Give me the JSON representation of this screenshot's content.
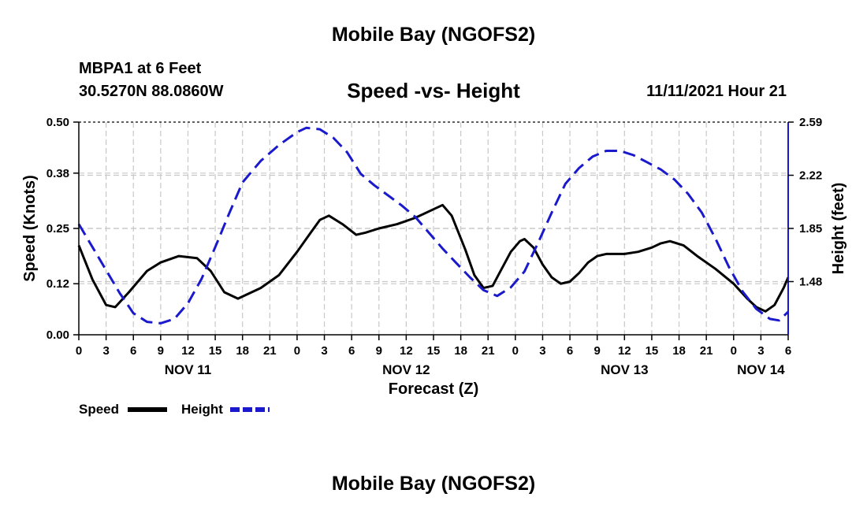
{
  "page": {
    "title": "Mobile Bay (NGOFS2)",
    "station": "MBPA1 at 6 Feet",
    "coords": "30.5270N  88.0860W",
    "subtitle": "Speed -vs- Height",
    "datetime": "11/11/2021 Hour 21",
    "bottom_title": "Mobile Bay (NGOFS2)"
  },
  "colors": {
    "speed": "#000000",
    "height": "#1a1acc",
    "grid": "#c8c8c8"
  },
  "chart_data": {
    "type": "line",
    "title": "Speed -vs- Height",
    "xlabel": "Forecast (Z)",
    "ylabel": "Speed (Knots)",
    "y2label": "Height (feet)",
    "x_range": [
      0,
      78
    ],
    "x_ticks": [
      0,
      3,
      6,
      9,
      12,
      15,
      18,
      21,
      24,
      27,
      30,
      33,
      36,
      39,
      42,
      45,
      48,
      51,
      54,
      57,
      60,
      63,
      66,
      69,
      72,
      75,
      78
    ],
    "x_tick_labels": [
      "0",
      "3",
      "6",
      "9",
      "12",
      "15",
      "18",
      "21",
      "0",
      "3",
      "6",
      "9",
      "12",
      "15",
      "18",
      "21",
      "0",
      "3",
      "6",
      "9",
      "12",
      "15",
      "18",
      "21",
      "0",
      "3",
      "6"
    ],
    "day_labels": [
      {
        "x": 12,
        "label": "NOV 11"
      },
      {
        "x": 36,
        "label": "NOV 12"
      },
      {
        "x": 60,
        "label": "NOV 13"
      },
      {
        "x": 75,
        "label": "NOV 14"
      }
    ],
    "ylim": [
      0,
      0.5
    ],
    "y_ticks": [
      0.0,
      0.12,
      0.25,
      0.38,
      0.5
    ],
    "y_tick_labels": [
      "0.00",
      "0.12",
      "0.25",
      "0.38",
      "0.50"
    ],
    "y2lim": [
      1.11,
      2.59
    ],
    "y2_ticks": [
      1.48,
      1.85,
      2.22,
      2.59
    ],
    "y2_tick_labels": [
      "1.48",
      "1.85",
      "2.22",
      "2.59"
    ],
    "series": [
      {
        "name": "Speed",
        "axis": "left",
        "style": "solid",
        "points": [
          [
            0,
            0.21
          ],
          [
            1.5,
            0.13
          ],
          [
            3,
            0.07
          ],
          [
            4,
            0.065
          ],
          [
            5.5,
            0.1
          ],
          [
            7.5,
            0.15
          ],
          [
            9,
            0.17
          ],
          [
            11,
            0.185
          ],
          [
            13,
            0.18
          ],
          [
            14.5,
            0.15
          ],
          [
            16,
            0.1
          ],
          [
            17.5,
            0.085
          ],
          [
            20,
            0.11
          ],
          [
            22,
            0.14
          ],
          [
            24,
            0.195
          ],
          [
            25.5,
            0.24
          ],
          [
            26.5,
            0.27
          ],
          [
            27.5,
            0.28
          ],
          [
            29,
            0.26
          ],
          [
            30.5,
            0.235
          ],
          [
            31.5,
            0.24
          ],
          [
            33,
            0.25
          ],
          [
            35,
            0.26
          ],
          [
            37,
            0.275
          ],
          [
            39,
            0.295
          ],
          [
            40,
            0.305
          ],
          [
            41,
            0.28
          ],
          [
            42.5,
            0.2
          ],
          [
            43.5,
            0.14
          ],
          [
            44.5,
            0.11
          ],
          [
            45.5,
            0.115
          ],
          [
            46.5,
            0.155
          ],
          [
            47.5,
            0.195
          ],
          [
            48.5,
            0.22
          ],
          [
            49,
            0.225
          ],
          [
            50,
            0.205
          ],
          [
            51,
            0.165
          ],
          [
            52,
            0.135
          ],
          [
            53,
            0.12
          ],
          [
            54,
            0.125
          ],
          [
            55,
            0.145
          ],
          [
            56,
            0.17
          ],
          [
            57,
            0.185
          ],
          [
            58,
            0.19
          ],
          [
            60,
            0.19
          ],
          [
            61.5,
            0.195
          ],
          [
            63,
            0.205
          ],
          [
            64,
            0.215
          ],
          [
            65,
            0.22
          ],
          [
            66.5,
            0.21
          ],
          [
            68,
            0.185
          ],
          [
            70,
            0.155
          ],
          [
            72,
            0.12
          ],
          [
            73.5,
            0.085
          ],
          [
            74.5,
            0.065
          ],
          [
            75.5,
            0.055
          ],
          [
            76.5,
            0.07
          ],
          [
            77.5,
            0.11
          ],
          [
            78,
            0.135
          ]
        ]
      },
      {
        "name": "Height",
        "axis": "right",
        "style": "dashed",
        "points": [
          [
            0,
            1.88
          ],
          [
            1.5,
            1.72
          ],
          [
            3,
            1.56
          ],
          [
            4.5,
            1.4
          ],
          [
            6,
            1.26
          ],
          [
            7.5,
            1.2
          ],
          [
            9,
            1.19
          ],
          [
            10.5,
            1.22
          ],
          [
            12,
            1.33
          ],
          [
            13.5,
            1.5
          ],
          [
            15,
            1.72
          ],
          [
            16.5,
            1.95
          ],
          [
            18,
            2.17
          ],
          [
            20,
            2.32
          ],
          [
            22,
            2.43
          ],
          [
            24,
            2.52
          ],
          [
            25,
            2.55
          ],
          [
            26.5,
            2.54
          ],
          [
            28,
            2.48
          ],
          [
            29.5,
            2.38
          ],
          [
            31,
            2.23
          ],
          [
            32.5,
            2.15
          ],
          [
            34,
            2.08
          ],
          [
            35.5,
            2.01
          ],
          [
            37,
            1.93
          ],
          [
            38.5,
            1.82
          ],
          [
            40,
            1.71
          ],
          [
            41.5,
            1.61
          ],
          [
            43,
            1.51
          ],
          [
            44.5,
            1.42
          ],
          [
            46,
            1.38
          ],
          [
            47.5,
            1.44
          ],
          [
            49,
            1.55
          ],
          [
            50.5,
            1.75
          ],
          [
            52,
            1.96
          ],
          [
            53.5,
            2.16
          ],
          [
            55,
            2.27
          ],
          [
            56.5,
            2.35
          ],
          [
            58,
            2.39
          ],
          [
            59.5,
            2.39
          ],
          [
            61,
            2.36
          ],
          [
            62.5,
            2.31
          ],
          [
            64,
            2.26
          ],
          [
            65.5,
            2.19
          ],
          [
            67,
            2.09
          ],
          [
            68.5,
            1.96
          ],
          [
            70,
            1.78
          ],
          [
            71.5,
            1.58
          ],
          [
            73,
            1.41
          ],
          [
            74.5,
            1.29
          ],
          [
            76,
            1.22
          ],
          [
            77,
            1.21
          ],
          [
            78,
            1.27
          ]
        ]
      }
    ],
    "legend": [
      {
        "name": "Speed",
        "style": "solid"
      },
      {
        "name": "Height",
        "style": "dashed"
      }
    ]
  }
}
